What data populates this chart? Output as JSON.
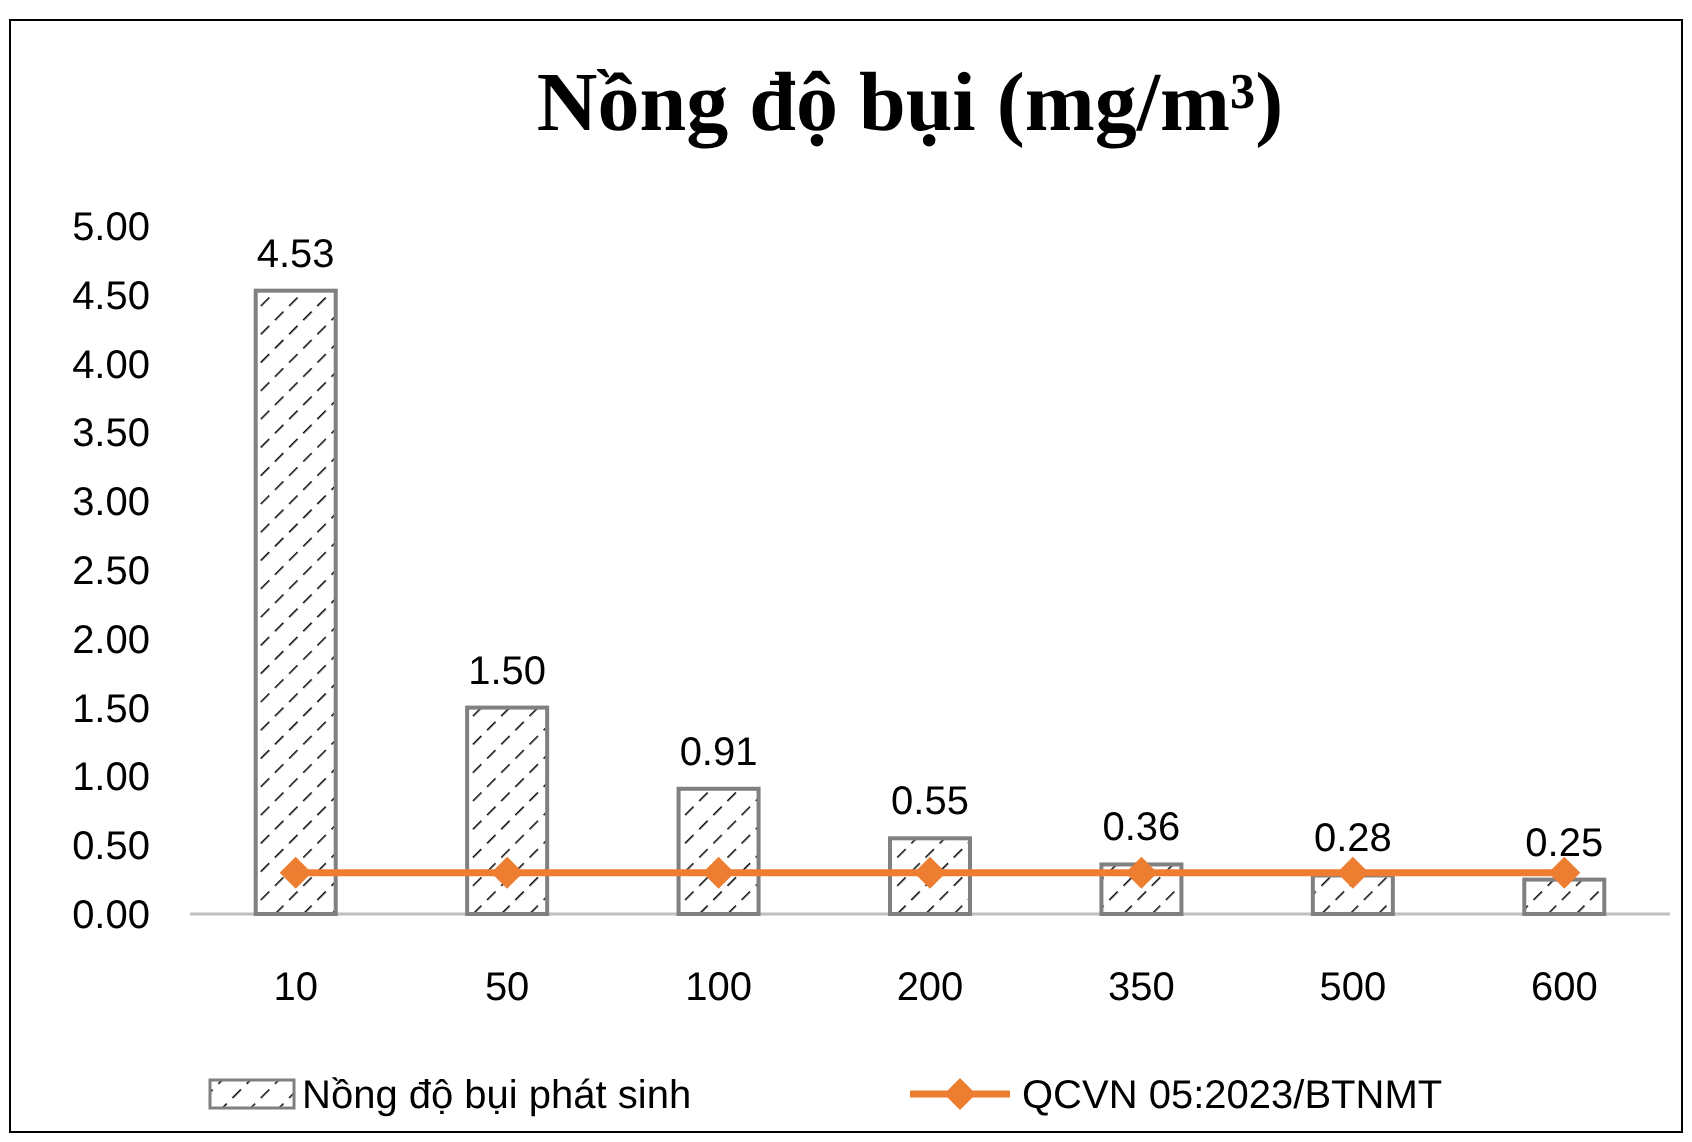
{
  "chart_data": {
    "type": "bar",
    "title": "Nồng độ bụi (mg/m³)",
    "categories": [
      "10",
      "50",
      "100",
      "200",
      "350",
      "500",
      "600"
    ],
    "series": [
      {
        "name": "Nồng độ bụi phát sinh",
        "color": "#808080",
        "values": [
          4.53,
          1.5,
          0.91,
          0.55,
          0.36,
          0.28,
          0.25
        ],
        "value_labels": [
          "4.53",
          "1.50",
          "0.91",
          "0.55",
          "0.36",
          "0.28",
          "0.25"
        ]
      },
      {
        "name": "QCVN 05:2023/BTNMT",
        "type": "line",
        "color": "#ed7d31",
        "values": [
          0.3,
          0.3,
          0.3,
          0.3,
          0.3,
          0.3,
          0.3
        ],
        "marker": "diamond"
      }
    ],
    "ylim": [
      0,
      5
    ],
    "yticks": [
      {
        "value": 0,
        "label": "0.00"
      },
      {
        "value": 0.5,
        "label": "0.50"
      },
      {
        "value": 1,
        "label": "1.00"
      },
      {
        "value": 1.5,
        "label": "1.50"
      },
      {
        "value": 2,
        "label": "2.00"
      },
      {
        "value": 2.5,
        "label": "2.50"
      },
      {
        "value": 3,
        "label": "3.00"
      },
      {
        "value": 3.5,
        "label": "3.50"
      },
      {
        "value": 4,
        "label": "4.00"
      },
      {
        "value": 4.5,
        "label": "4.50"
      },
      {
        "value": 5,
        "label": "5.00"
      }
    ],
    "grid": false,
    "legend": "bottom"
  }
}
